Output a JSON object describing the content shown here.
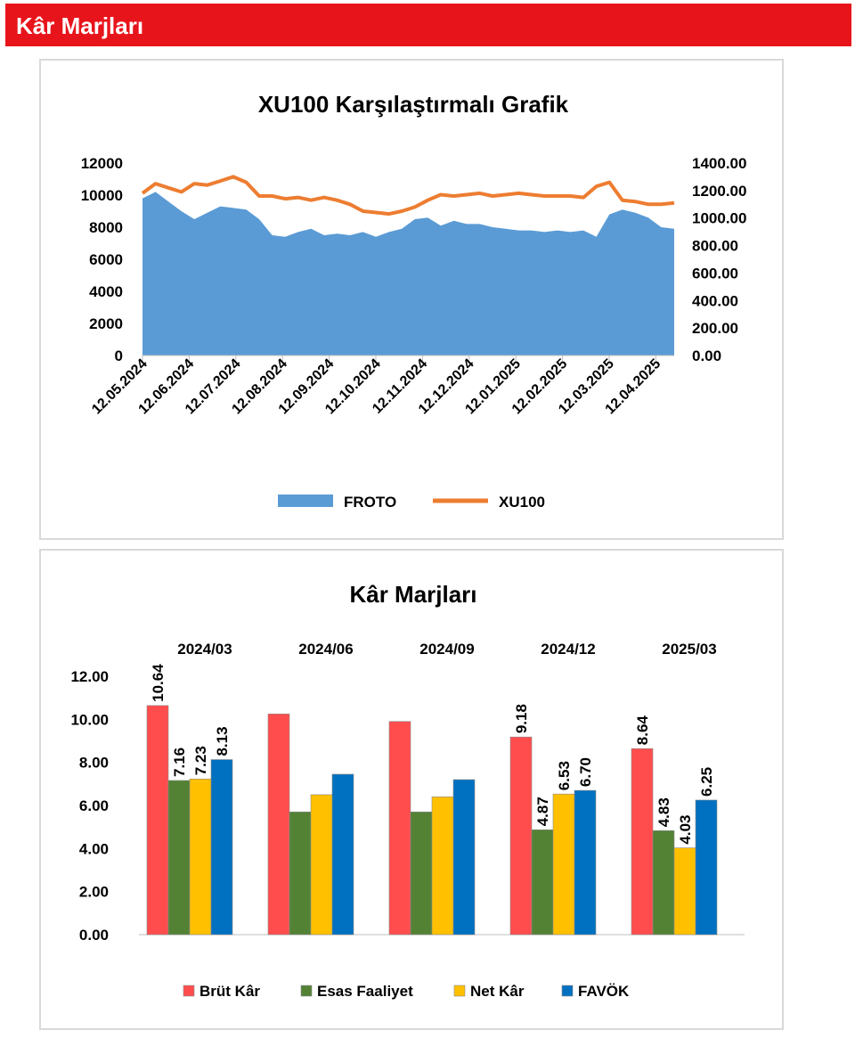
{
  "header": {
    "title": "Kâr Marjları"
  },
  "colors": {
    "header_bg": "#e8141b",
    "froto": "#5b9bd5",
    "xu100": "#ed7d31",
    "brut_kar": "#ff4d4d",
    "esas_faaliyet": "#548235",
    "net_kar": "#ffc000",
    "favok": "#0070c0"
  },
  "chart_data": [
    {
      "type": "area",
      "title": "XU100 Karşılaştırmalı  Grafik",
      "y_left": {
        "min": 0,
        "max": 12000,
        "ticks": [
          "12000",
          "10000",
          "8000",
          "6000",
          "4000",
          "2000",
          "0"
        ]
      },
      "y_right": {
        "min": 0,
        "max": 1400,
        "ticks": [
          "1400.00",
          "1200.00",
          "1000.00",
          "800.00",
          "600.00",
          "400.00",
          "200.00",
          "0.00"
        ]
      },
      "x_ticks": [
        "12.05.2024",
        "12.06.2024",
        "12.07.2024",
        "12.08.2024",
        "12.09.2024",
        "12.10.2024",
        "12.11.2024",
        "12.12.2024",
        "12.01.2025",
        "12.02.2025",
        "12.03.2025",
        "12.04.2025"
      ],
      "grid": false,
      "legend_position": "bottom",
      "series": [
        {
          "name": "FROTO",
          "axis": "left",
          "kind": "area",
          "values": [
            9800,
            10200,
            9600,
            9000,
            8500,
            8900,
            9300,
            9200,
            9100,
            8500,
            7500,
            7400,
            7700,
            7900,
            7500,
            7600,
            7500,
            7700,
            7400,
            7700,
            7900,
            8500,
            8600,
            8100,
            8400,
            8200,
            8200,
            8000,
            7900,
            7800,
            7800,
            7700,
            7800,
            7700,
            7800,
            7400,
            8800,
            9100,
            8900,
            8600,
            8000,
            7900
          ]
        },
        {
          "name": "XU100",
          "axis": "right",
          "kind": "line",
          "values": [
            1180,
            1250,
            1220,
            1190,
            1250,
            1240,
            1270,
            1300,
            1260,
            1160,
            1160,
            1140,
            1150,
            1130,
            1150,
            1130,
            1100,
            1050,
            1040,
            1030,
            1050,
            1080,
            1130,
            1170,
            1160,
            1170,
            1180,
            1160,
            1170,
            1180,
            1170,
            1160,
            1160,
            1160,
            1150,
            1230,
            1260,
            1130,
            1120,
            1100,
            1100,
            1110
          ]
        }
      ]
    },
    {
      "type": "bar",
      "title": "Kâr Marjları",
      "categories": [
        "2024/03",
        "2024/06",
        "2024/09",
        "2024/12",
        "2025/03"
      ],
      "ylim": [
        0,
        12
      ],
      "y_ticks": [
        "12.00",
        "10.00",
        "8.00",
        "6.00",
        "4.00",
        "2.00",
        "0.00"
      ],
      "grid": false,
      "legend_position": "bottom",
      "series": [
        {
          "name": "Brüt Kâr",
          "values": [
            10.64,
            10.25,
            9.9,
            9.18,
            8.64
          ],
          "labels": [
            "10.64",
            "",
            "",
            "9.18",
            "8.64"
          ]
        },
        {
          "name": "Esas Faaliyet",
          "values": [
            7.16,
            5.7,
            5.7,
            4.87,
            4.83
          ],
          "labels": [
            "7.16",
            "",
            "",
            "4.87",
            "4.83"
          ]
        },
        {
          "name": "Net Kâr",
          "values": [
            7.23,
            6.5,
            6.4,
            6.53,
            4.03
          ],
          "labels": [
            "7.23",
            "",
            "",
            "6.53",
            "4.03"
          ]
        },
        {
          "name": "FAVÖK",
          "values": [
            8.13,
            7.45,
            7.2,
            6.7,
            6.25
          ],
          "labels": [
            "8.13",
            "",
            "",
            "6.70",
            "6.25"
          ]
        }
      ]
    }
  ]
}
